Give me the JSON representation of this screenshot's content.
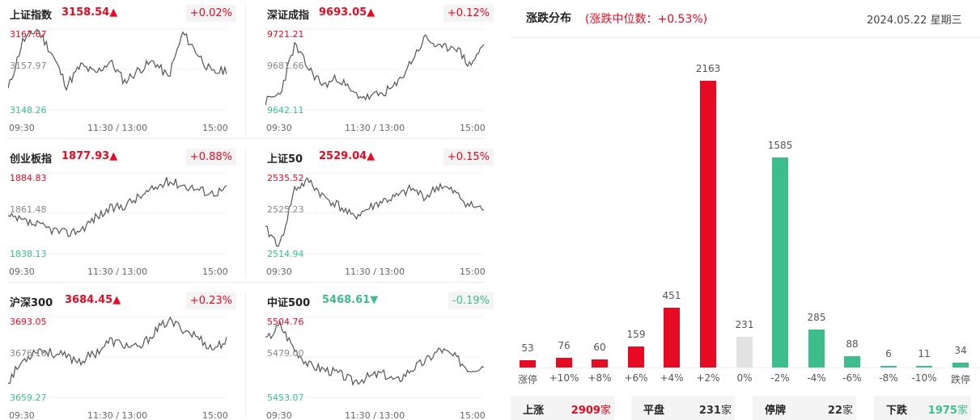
{
  "panels": [
    {
      "name": "上证指数",
      "value": "3158.54",
      "dir": "up",
      "change": "+0.02%",
      "high": "3167.67",
      "mid": "3157.97",
      "low": "3148.26"
    },
    {
      "name": "深证成指",
      "value": "9693.05",
      "dir": "up",
      "change": "+0.12%",
      "high": "9721.21",
      "mid": "9681.66",
      "low": "9642.11"
    },
    {
      "name": "创业板指",
      "value": "1877.93",
      "dir": "up",
      "change": "+0.88%",
      "high": "1884.83",
      "mid": "1861.48",
      "low": "1838.13"
    },
    {
      "name": "上证50",
      "value": "2529.04",
      "dir": "up",
      "change": "+0.15%",
      "high": "2535.52",
      "mid": "2525.23",
      "low": "2514.94"
    },
    {
      "name": "沪深300",
      "value": "3684.45",
      "dir": "up",
      "change": "+0.23%",
      "high": "3693.05",
      "mid": "3676.16",
      "low": "3659.27"
    },
    {
      "name": "中证500",
      "value": "5468.61",
      "dir": "down",
      "change": "-0.19%",
      "high": "5504.76",
      "mid": "5479.00",
      "low": "5453.07"
    }
  ],
  "time_axis": {
    "start": "09:30",
    "middle": "11:30 / 13:00",
    "end": "15:00"
  },
  "arrows": {
    "up": "▲",
    "down": "▼"
  },
  "distribution": {
    "title": "涨跌分布",
    "subtitle": "(涨跌中位数：+0.53%)",
    "date": "2024.05.22 星期三"
  },
  "colors": {
    "up": "#e60a23",
    "down": "#3ebd8c",
    "flat": "#e2e2e2",
    "line": "#555555"
  },
  "chart_data": {
    "type": "bar",
    "categories": [
      "涨停",
      "+10%",
      "+8%",
      "+6%",
      "+4%",
      "+2%",
      "0%",
      "-2%",
      "-4%",
      "-6%",
      "-8%",
      "-10%",
      "跌停"
    ],
    "values": [
      53,
      76,
      60,
      159,
      451,
      2163,
      231,
      1585,
      285,
      88,
      6,
      11,
      34
    ],
    "value_labels": [
      "53",
      "76",
      "60",
      "159",
      "451",
      "2163",
      "231",
      "1585",
      "285",
      "88",
      "6",
      "11",
      "34"
    ],
    "ylim": [
      0,
      2163
    ],
    "grid": false
  },
  "summary": [
    {
      "label": "上涨",
      "value": "2909",
      "unit": "家",
      "dir": "up"
    },
    {
      "label": "平盘",
      "value": "231",
      "unit": "家",
      "dir": "flat"
    },
    {
      "label": "停牌",
      "value": "22",
      "unit": "家",
      "dir": "flat"
    },
    {
      "label": "下跌",
      "value": "1975",
      "unit": "家",
      "dir": "down"
    }
  ]
}
